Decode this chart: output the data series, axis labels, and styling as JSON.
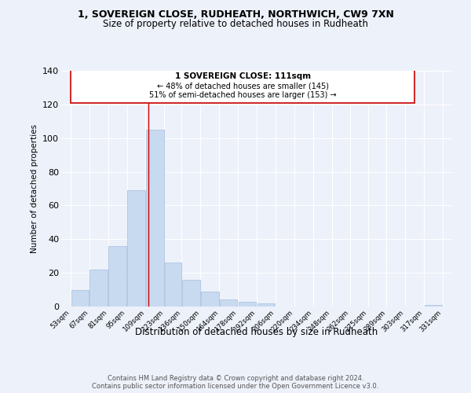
{
  "title1": "1, SOVEREIGN CLOSE, RUDHEATH, NORTHWICH, CW9 7XN",
  "title2": "Size of property relative to detached houses in Rudheath",
  "xlabel": "Distribution of detached houses by size in Rudheath",
  "ylabel": "Number of detached properties",
  "bar_centers": [
    60,
    74,
    88,
    102,
    116,
    129.5,
    143,
    157,
    171,
    185,
    199,
    213,
    227,
    241,
    255,
    268.5,
    282,
    296,
    310,
    324
  ],
  "bar_widths": [
    13.5,
    13.5,
    13.5,
    13.5,
    13.5,
    12.5,
    13.5,
    13.5,
    13.5,
    13.5,
    13.5,
    13.5,
    13.5,
    13.5,
    13.5,
    12.5,
    13.5,
    13.5,
    13.5,
    13.5
  ],
  "bar_heights": [
    10,
    22,
    36,
    69,
    105,
    26,
    16,
    9,
    4,
    3,
    2,
    0,
    0,
    0,
    0,
    0,
    0,
    0,
    0,
    1
  ],
  "bar_color": "#c8daf0",
  "bar_edgecolor": "#aec4e0",
  "highlight_x": 111,
  "highlight_color": "#cc0000",
  "annotation_line1": "1 SOVEREIGN CLOSE: 111sqm",
  "annotation_line2": "← 48% of detached houses are smaller (145)",
  "annotation_line3": "51% of semi-detached houses are larger (153) →",
  "ann_x0": 53,
  "ann_y0": 121,
  "ann_x1": 310,
  "ann_y1": 141,
  "xlim": [
    46,
    338
  ],
  "ylim": [
    0,
    140
  ],
  "yticks": [
    0,
    20,
    40,
    60,
    80,
    100,
    120,
    140
  ],
  "xtick_positions": [
    53,
    67,
    81,
    95,
    109,
    123,
    136,
    150,
    164,
    178,
    192,
    206,
    220,
    234,
    248,
    262,
    275,
    289,
    303,
    317,
    331
  ],
  "xtick_labels": [
    "53sqm",
    "67sqm",
    "81sqm",
    "95sqm",
    "109sqm",
    "123sqm",
    "136sqm",
    "150sqm",
    "164sqm",
    "178sqm",
    "192sqm",
    "206sqm",
    "220sqm",
    "234sqm",
    "248sqm",
    "262sqm",
    "275sqm",
    "289sqm",
    "303sqm",
    "317sqm",
    "331sqm"
  ],
  "footer1": "Contains HM Land Registry data © Crown copyright and database right 2024.",
  "footer2": "Contains public sector information licensed under the Open Government Licence v3.0.",
  "bg_color": "#edf1fa",
  "grid_color": "#ffffff"
}
